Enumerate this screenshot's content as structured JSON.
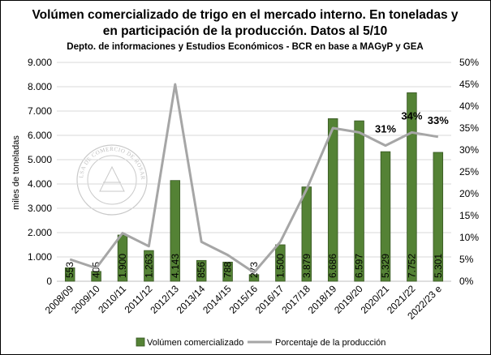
{
  "chart_data": {
    "type": "bar",
    "title_line1": "Volúmen comercializado de trigo en el mercado interno. En toneladas y",
    "title_line2": "en participación de la producción. Datos al 5/10",
    "subtitle": "Depto. de informaciones y Estudios Económicos - BCR en base a MAGyP y GEA",
    "ylabel": "miles de toneladas",
    "categories": [
      "2008/09",
      "2009/10",
      "2010/11",
      "2011/12",
      "2012/13",
      "2013/14",
      "2014/15",
      "2015/16",
      "2016/17",
      "2017/18",
      "2018/19",
      "2019/20",
      "2020/21",
      "2021/22",
      "2022/23 e"
    ],
    "y_ticks": [
      "0",
      "1.000",
      "2.000",
      "3.000",
      "4.000",
      "5.000",
      "6.000",
      "7.000",
      "8.000",
      "9.000"
    ],
    "y2_ticks": [
      "0%",
      "5%",
      "10%",
      "15%",
      "20%",
      "25%",
      "30%",
      "35%",
      "40%",
      "45%",
      "50%"
    ],
    "ylim": [
      0,
      9000
    ],
    "y2lim": [
      0,
      50
    ],
    "series": [
      {
        "name": "Volúmen comercializado",
        "kind": "bar",
        "color": "#548235",
        "values": [
          553,
          405,
          1900,
          1263,
          4143,
          856,
          788,
          273,
          1500,
          3879,
          6686,
          6597,
          5329,
          7752,
          5301
        ],
        "labels": [
          "553",
          "405",
          "1.900",
          "1.263",
          "4.143",
          "856",
          "788",
          "273",
          "1.500",
          "3.879",
          "6.686",
          "6.597",
          "5.329",
          "7.752",
          "5.301"
        ]
      },
      {
        "name": "Porcentaje de la producción",
        "kind": "line",
        "color": "#a6a6a6",
        "values": [
          5,
          3,
          11,
          8,
          45,
          9,
          6,
          2,
          9,
          21,
          35,
          34,
          31,
          34,
          33
        ]
      }
    ],
    "annotations": [
      {
        "index": 12,
        "text": "31%"
      },
      {
        "index": 13,
        "text": "34%"
      },
      {
        "index": 14,
        "text": "33%"
      }
    ],
    "legend_position": "bottom",
    "watermark_text": "BOLSA DE COMERCIO DE ROSARIO"
  }
}
